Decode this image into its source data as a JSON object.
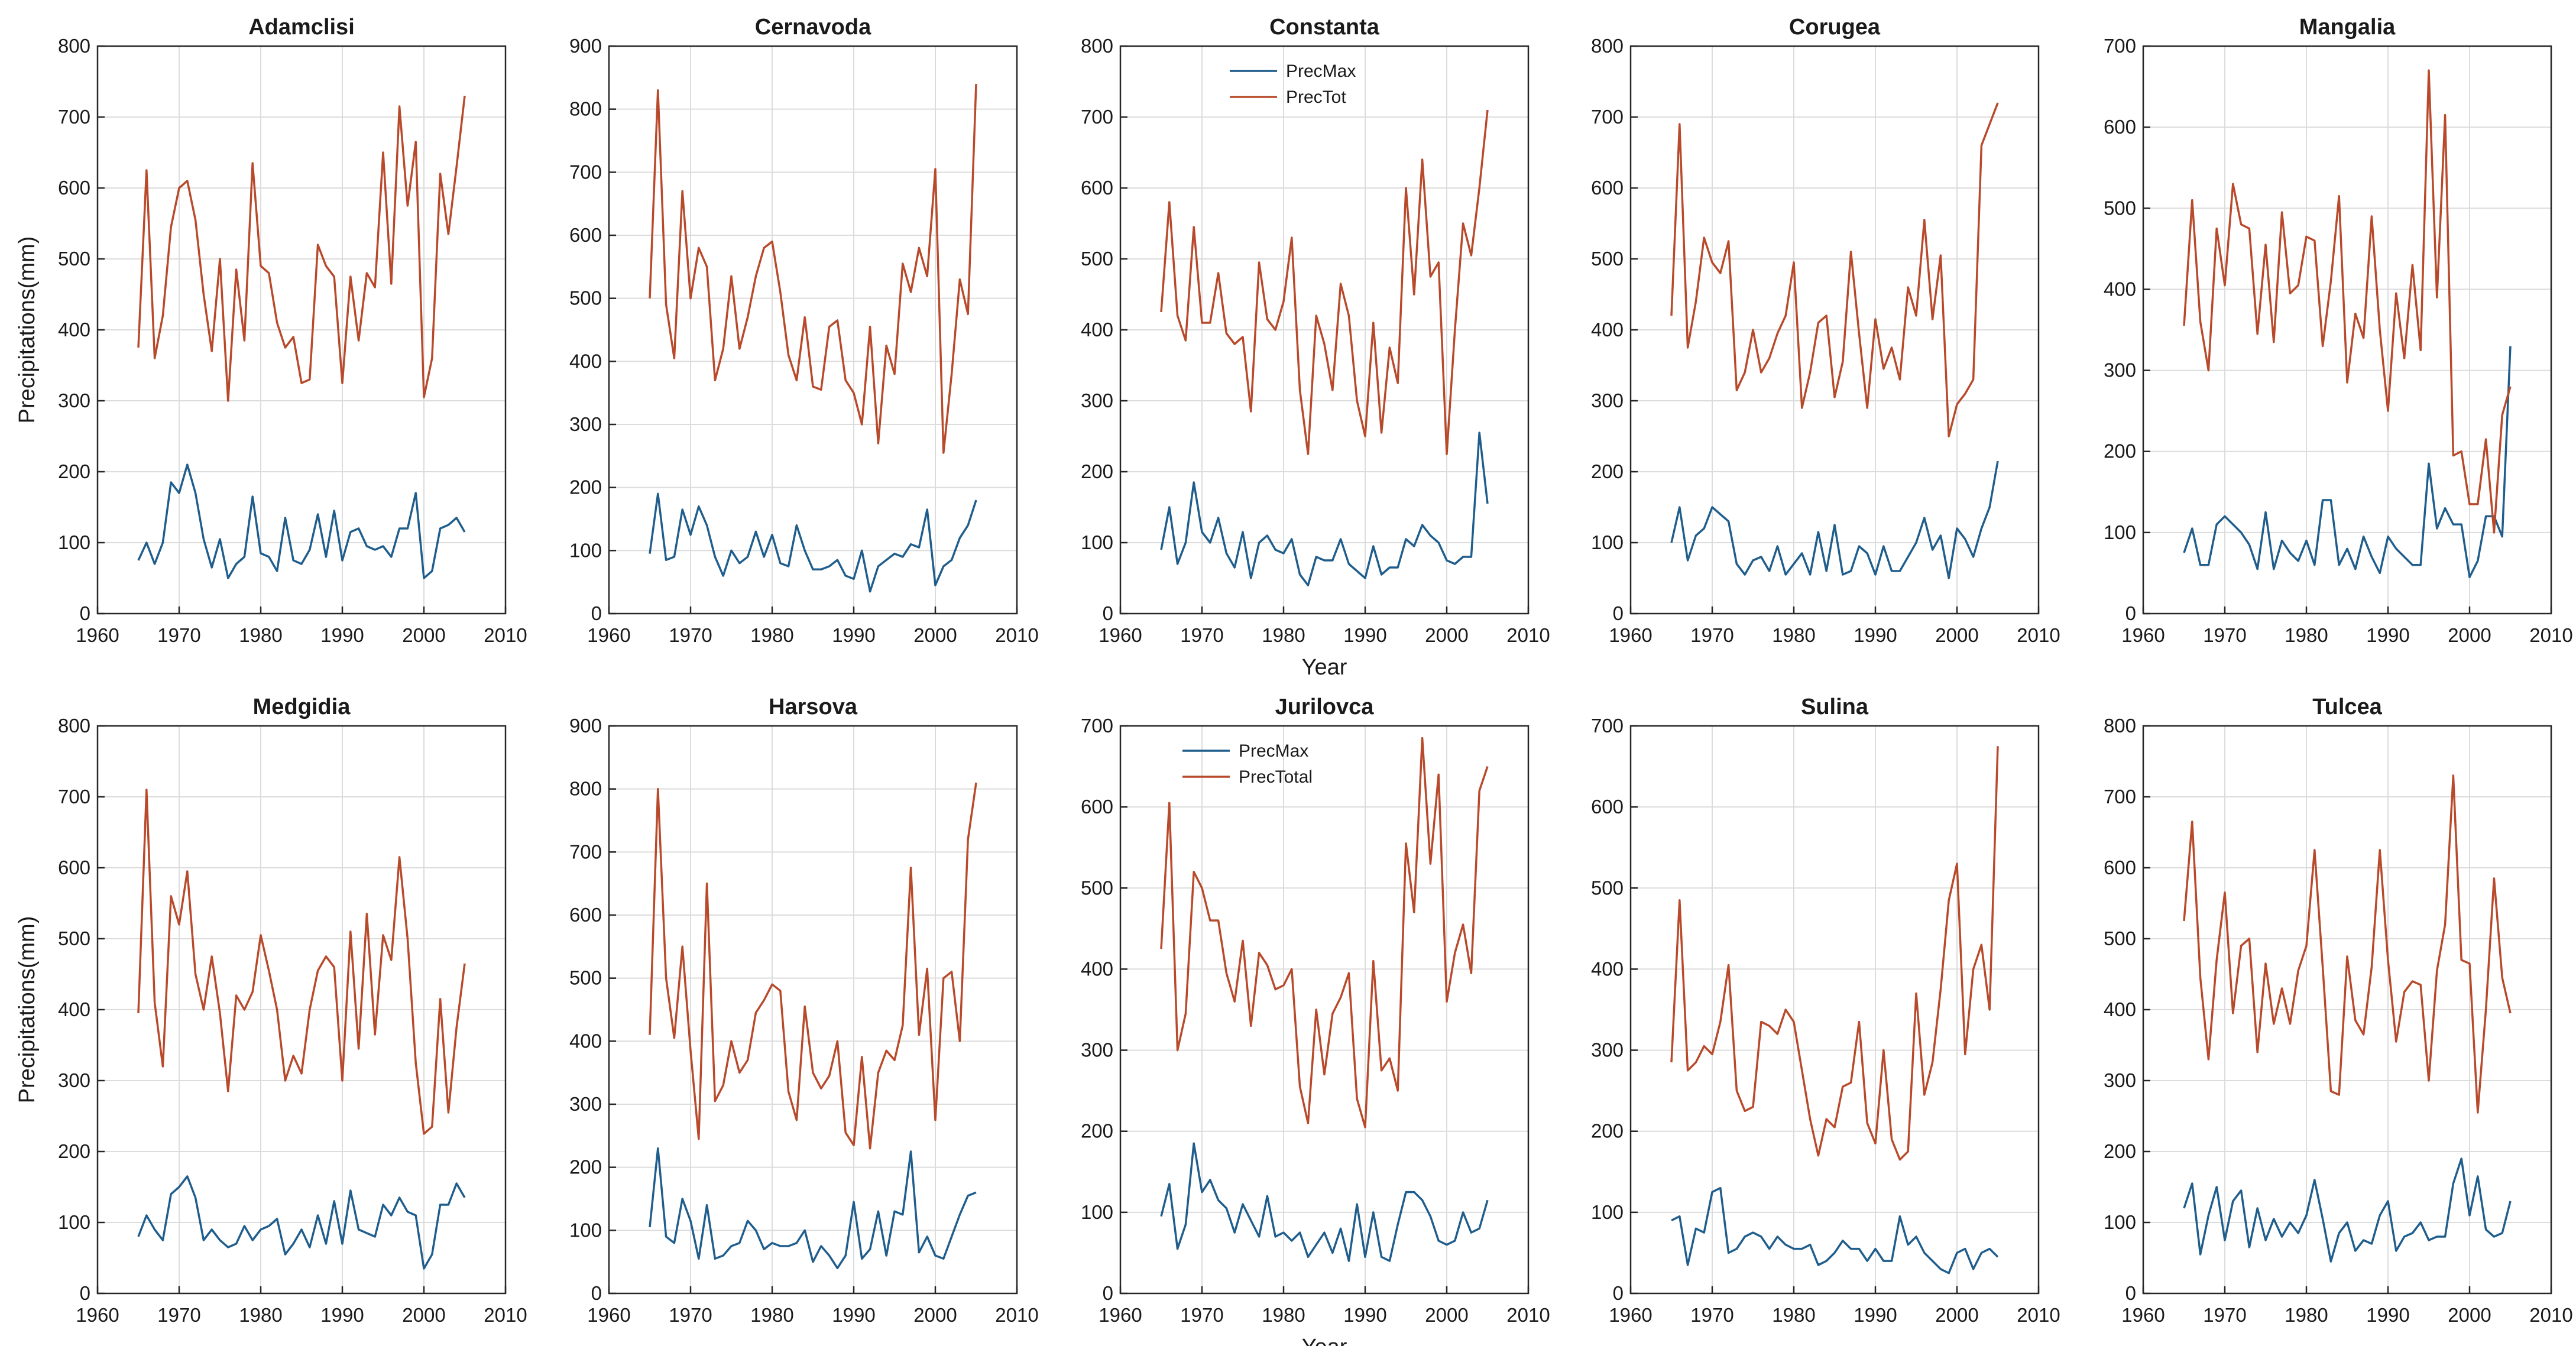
{
  "colors": {
    "precmax": "#1f5d8c",
    "prectot": "#b84a2b",
    "grid": "#dcdcdc",
    "axis": "#262626"
  },
  "shared": {
    "xlabel": "Year",
    "ylabel": "Precipitations(mm)",
    "xlim": [
      1960,
      2010
    ],
    "xticks": [
      1960,
      1970,
      1980,
      1990,
      2000,
      2010
    ],
    "x_start_year": 1965,
    "x_end_year": 2005,
    "grid": true,
    "ylabel_on": [
      "Adamclisi",
      "Medgidia"
    ],
    "xlabel_on": [
      "Constanta",
      "Jurilovca"
    ]
  },
  "chart_data": [
    {
      "type": "line",
      "title": "Adamclisi",
      "ylim": [
        0,
        800
      ],
      "ystep": 100,
      "legend": null,
      "series": [
        {
          "name": "PrecMax",
          "values": [
            75,
            100,
            70,
            100,
            185,
            170,
            210,
            170,
            105,
            65,
            105,
            50,
            70,
            80,
            165,
            85,
            80,
            60,
            135,
            75,
            70,
            90,
            140,
            80,
            145,
            75,
            115,
            120,
            95,
            90,
            95,
            80,
            120,
            120,
            170,
            50,
            60,
            120,
            125,
            135,
            115
          ]
        },
        {
          "name": "PrecTot",
          "values": [
            375,
            625,
            360,
            420,
            545,
            600,
            610,
            555,
            450,
            370,
            500,
            300,
            485,
            385,
            635,
            490,
            480,
            410,
            375,
            390,
            325,
            330,
            520,
            490,
            475,
            325,
            475,
            385,
            480,
            460,
            650,
            465,
            715,
            575,
            665,
            305,
            360,
            620,
            535,
            630,
            730
          ]
        }
      ]
    },
    {
      "type": "line",
      "title": "Cernavoda",
      "ylim": [
        0,
        900
      ],
      "ystep": 100,
      "legend": null,
      "series": [
        {
          "name": "PrecMax",
          "values": [
            95,
            190,
            85,
            90,
            165,
            125,
            170,
            140,
            90,
            60,
            100,
            80,
            90,
            130,
            90,
            125,
            80,
            75,
            140,
            100,
            70,
            70,
            75,
            85,
            60,
            55,
            100,
            35,
            75,
            85,
            95,
            90,
            110,
            105,
            165,
            45,
            75,
            85,
            120,
            140,
            180
          ]
        },
        {
          "name": "PrecTot",
          "values": [
            500,
            830,
            490,
            405,
            670,
            500,
            580,
            550,
            370,
            420,
            535,
            420,
            470,
            535,
            580,
            590,
            510,
            410,
            370,
            470,
            360,
            355,
            455,
            465,
            370,
            350,
            300,
            455,
            270,
            425,
            380,
            555,
            510,
            580,
            535,
            705,
            255,
            380,
            530,
            475,
            840
          ]
        }
      ]
    },
    {
      "type": "line",
      "title": "Constanta",
      "ylim": [
        0,
        800
      ],
      "ystep": 100,
      "legend": "top-center",
      "series": [
        {
          "name": "PrecMax",
          "values": [
            90,
            150,
            70,
            100,
            185,
            115,
            100,
            135,
            85,
            65,
            115,
            50,
            100,
            110,
            90,
            85,
            105,
            55,
            40,
            80,
            75,
            75,
            105,
            70,
            60,
            50,
            95,
            55,
            65,
            65,
            105,
            95,
            125,
            110,
            100,
            75,
            70,
            80,
            80,
            255,
            155
          ]
        },
        {
          "name": "PrecTot",
          "values": [
            425,
            580,
            420,
            385,
            545,
            410,
            410,
            480,
            395,
            380,
            390,
            285,
            495,
            415,
            400,
            440,
            530,
            315,
            225,
            420,
            380,
            315,
            465,
            420,
            300,
            250,
            410,
            255,
            375,
            325,
            600,
            450,
            640,
            475,
            495,
            225,
            400,
            550,
            505,
            600,
            710
          ]
        }
      ]
    },
    {
      "type": "line",
      "title": "Corugea",
      "ylim": [
        0,
        800
      ],
      "ystep": 100,
      "legend": null,
      "series": [
        {
          "name": "PrecMax",
          "values": [
            100,
            150,
            75,
            110,
            120,
            150,
            140,
            130,
            70,
            55,
            75,
            80,
            60,
            95,
            55,
            70,
            85,
            55,
            115,
            60,
            125,
            55,
            60,
            95,
            85,
            55,
            95,
            60,
            60,
            80,
            100,
            135,
            90,
            110,
            50,
            120,
            105,
            80,
            120,
            150,
            215
          ]
        },
        {
          "name": "PrecTot",
          "values": [
            420,
            690,
            375,
            440,
            530,
            495,
            480,
            525,
            315,
            340,
            400,
            340,
            360,
            395,
            420,
            495,
            290,
            340,
            410,
            420,
            305,
            355,
            510,
            395,
            290,
            415,
            345,
            375,
            330,
            460,
            420,
            555,
            415,
            505,
            250,
            295,
            310,
            330,
            660,
            690,
            720
          ]
        }
      ]
    },
    {
      "type": "line",
      "title": "Mangalia",
      "ylim": [
        0,
        700
      ],
      "ystep": 100,
      "legend": null,
      "series": [
        {
          "name": "PrecMax",
          "values": [
            75,
            105,
            60,
            60,
            110,
            120,
            110,
            100,
            85,
            55,
            125,
            55,
            90,
            75,
            65,
            90,
            60,
            140,
            140,
            60,
            80,
            55,
            95,
            70,
            50,
            95,
            80,
            70,
            60,
            60,
            185,
            105,
            130,
            110,
            110,
            45,
            65,
            120,
            120,
            95,
            330
          ]
        },
        {
          "name": "PrecTot",
          "values": [
            355,
            510,
            360,
            300,
            475,
            405,
            530,
            480,
            475,
            345,
            455,
            335,
            495,
            395,
            405,
            465,
            460,
            330,
            410,
            515,
            285,
            370,
            340,
            490,
            350,
            250,
            395,
            315,
            430,
            325,
            670,
            390,
            615,
            195,
            200,
            135,
            135,
            215,
            100,
            245,
            280
          ]
        }
      ]
    },
    {
      "type": "line",
      "title": "Medgidia",
      "ylim": [
        0,
        800
      ],
      "ystep": 100,
      "legend": null,
      "series": [
        {
          "name": "PrecMax",
          "values": [
            80,
            110,
            90,
            75,
            140,
            150,
            165,
            135,
            75,
            90,
            75,
            65,
            70,
            95,
            75,
            90,
            95,
            105,
            55,
            70,
            90,
            65,
            110,
            70,
            130,
            70,
            145,
            90,
            85,
            80,
            125,
            110,
            135,
            115,
            110,
            35,
            55,
            125,
            125,
            155,
            135
          ]
        },
        {
          "name": "PrecTot",
          "values": [
            395,
            710,
            410,
            320,
            560,
            520,
            595,
            450,
            400,
            475,
            395,
            285,
            420,
            400,
            425,
            505,
            455,
            400,
            300,
            335,
            310,
            400,
            455,
            475,
            460,
            300,
            510,
            345,
            535,
            365,
            505,
            470,
            615,
            500,
            325,
            225,
            235,
            415,
            255,
            375,
            465
          ]
        }
      ]
    },
    {
      "type": "line",
      "title": "Harsova",
      "ylim": [
        0,
        900
      ],
      "ystep": 100,
      "legend": null,
      "series": [
        {
          "name": "PrecMax",
          "values": [
            105,
            230,
            90,
            80,
            150,
            115,
            55,
            140,
            55,
            60,
            75,
            80,
            115,
            100,
            70,
            80,
            75,
            75,
            80,
            100,
            50,
            75,
            60,
            40,
            60,
            145,
            55,
            70,
            130,
            60,
            130,
            125,
            225,
            65,
            90,
            60,
            55,
            90,
            125,
            155,
            160
          ]
        },
        {
          "name": "PrecTot",
          "values": [
            410,
            800,
            500,
            405,
            550,
            385,
            245,
            650,
            305,
            330,
            400,
            350,
            370,
            445,
            465,
            490,
            480,
            320,
            275,
            455,
            350,
            325,
            345,
            400,
            255,
            235,
            375,
            230,
            350,
            385,
            370,
            425,
            675,
            410,
            515,
            275,
            500,
            510,
            400,
            720,
            810
          ]
        }
      ]
    },
    {
      "type": "line",
      "title": "Jurilovca",
      "ylim": [
        0,
        700
      ],
      "ystep": 100,
      "legend": "top-left",
      "series": [
        {
          "name": "PrecMax",
          "values": [
            95,
            135,
            55,
            85,
            185,
            125,
            140,
            115,
            105,
            75,
            110,
            90,
            70,
            120,
            70,
            75,
            65,
            75,
            45,
            60,
            75,
            50,
            80,
            40,
            110,
            45,
            100,
            45,
            40,
            85,
            125,
            125,
            115,
            95,
            65,
            60,
            65,
            100,
            75,
            80,
            115
          ]
        },
        {
          "name": "PrecTotal",
          "values": [
            425,
            605,
            300,
            345,
            520,
            500,
            460,
            460,
            395,
            360,
            435,
            330,
            420,
            405,
            375,
            380,
            400,
            255,
            210,
            350,
            270,
            345,
            365,
            395,
            240,
            205,
            410,
            275,
            290,
            250,
            555,
            470,
            685,
            530,
            640,
            360,
            420,
            455,
            395,
            620,
            650
          ]
        }
      ]
    },
    {
      "type": "line",
      "title": "Sulina",
      "ylim": [
        0,
        700
      ],
      "ystep": 100,
      "legend": null,
      "series": [
        {
          "name": "PrecMax",
          "values": [
            90,
            95,
            35,
            80,
            75,
            125,
            130,
            50,
            55,
            70,
            75,
            70,
            55,
            70,
            60,
            55,
            55,
            60,
            35,
            40,
            50,
            65,
            55,
            55,
            40,
            55,
            40,
            40,
            95,
            60,
            70,
            50,
            40,
            30,
            25,
            50,
            55,
            30,
            50,
            55,
            45
          ]
        },
        {
          "name": "PrecTot",
          "values": [
            285,
            485,
            275,
            285,
            305,
            295,
            335,
            405,
            250,
            225,
            230,
            335,
            330,
            320,
            350,
            335,
            275,
            215,
            170,
            215,
            205,
            255,
            260,
            335,
            210,
            185,
            300,
            190,
            165,
            175,
            370,
            245,
            285,
            375,
            485,
            530,
            295,
            400,
            430,
            350,
            675
          ]
        }
      ]
    },
    {
      "type": "line",
      "title": "Tulcea",
      "ylim": [
        0,
        800
      ],
      "ystep": 100,
      "legend": null,
      "series": [
        {
          "name": "PrecMax",
          "values": [
            120,
            155,
            55,
            110,
            150,
            75,
            130,
            145,
            65,
            120,
            75,
            105,
            80,
            100,
            85,
            110,
            160,
            105,
            45,
            85,
            100,
            60,
            75,
            70,
            110,
            130,
            60,
            80,
            85,
            100,
            75,
            80,
            80,
            155,
            190,
            110,
            165,
            90,
            80,
            85,
            130
          ]
        },
        {
          "name": "PrecTot",
          "values": [
            525,
            665,
            445,
            330,
            470,
            565,
            395,
            490,
            500,
            340,
            465,
            380,
            430,
            380,
            455,
            490,
            625,
            460,
            285,
            280,
            475,
            385,
            365,
            460,
            625,
            470,
            355,
            425,
            440,
            435,
            300,
            455,
            520,
            730,
            470,
            465,
            255,
            400,
            585,
            445,
            395
          ]
        }
      ]
    }
  ]
}
